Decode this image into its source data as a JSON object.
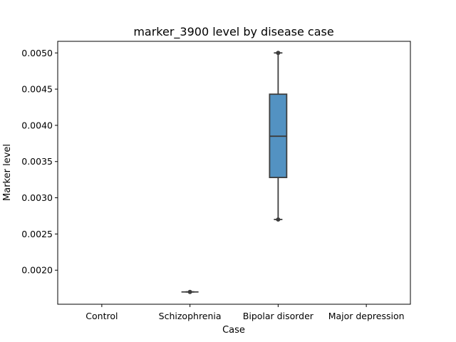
{
  "chart_data": {
    "type": "box",
    "title": "marker_3900 level by disease case",
    "xlabel": "Case",
    "ylabel": "Marker level",
    "categories": [
      "Control",
      "Schizophrenia",
      "Bipolar disorder",
      "Major depression"
    ],
    "ylim": [
      0.00153,
      0.00516
    ],
    "yticks": [
      0.002,
      0.0025,
      0.003,
      0.0035,
      0.004,
      0.0045,
      0.005
    ],
    "ytick_labels": [
      "0.0020",
      "0.0025",
      "0.0030",
      "0.0035",
      "0.0040",
      "0.0045",
      "0.0050"
    ],
    "box_color": "#5392c2",
    "line_color": "#3d3d3d",
    "boxes": [
      {
        "category": "Control",
        "empty": true
      },
      {
        "category": "Schizophrenia",
        "min": 0.0017,
        "q1": 0.0017,
        "median": 0.0017,
        "q3": 0.0017,
        "max": 0.0017,
        "points": [
          0.0017
        ]
      },
      {
        "category": "Bipolar disorder",
        "min": 0.0027,
        "q1": 0.00328,
        "median": 0.00385,
        "q3": 0.00443,
        "max": 0.005,
        "points": [
          0.0027,
          0.005
        ]
      },
      {
        "category": "Major depression",
        "empty": true
      }
    ]
  }
}
